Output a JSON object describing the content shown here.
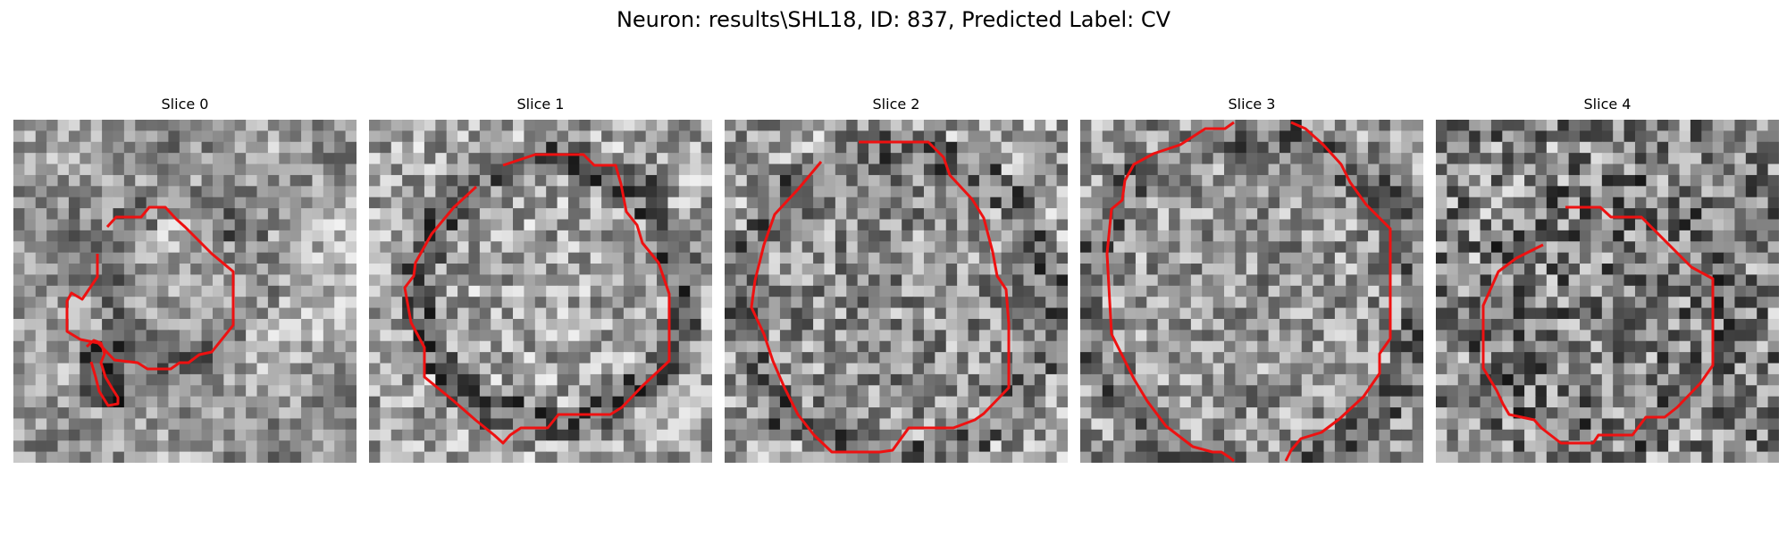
{
  "figure": {
    "title": "Neuron: results\\SHL18, ID: 837, Predicted Label: CV",
    "contour_color": "#ee1111",
    "colormap": "grayscale"
  },
  "slices": [
    {
      "title": "Slice 0"
    },
    {
      "title": "Slice 1"
    },
    {
      "title": "Slice 2"
    },
    {
      "title": "Slice 3"
    },
    {
      "title": "Slice 4"
    }
  ]
}
